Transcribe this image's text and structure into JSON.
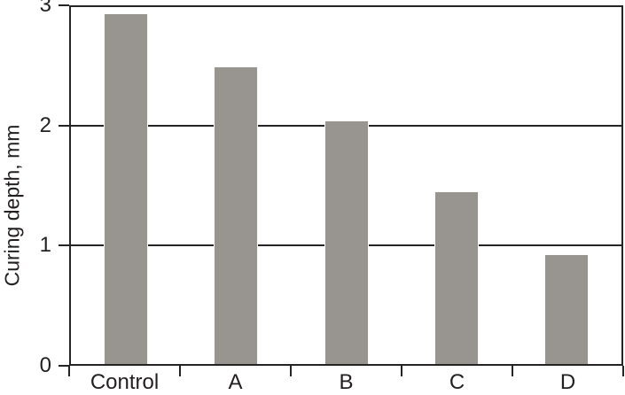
{
  "figure": {
    "background": "#ffffff"
  },
  "chart_data": {
    "type": "bar",
    "categories": [
      "Control",
      "A",
      "B",
      "C",
      "D"
    ],
    "values": [
      2.95,
      2.5,
      2.05,
      1.45,
      0.92
    ],
    "title": "",
    "xlabel": "",
    "ylabel": "Curing depth, mm",
    "ylim": [
      0,
      3
    ],
    "yticks": [
      0,
      1,
      2,
      3
    ],
    "gridlines_at": [
      1,
      2
    ],
    "grid": "horizontal",
    "legend": "none",
    "bar_color": "#98948f",
    "axis_color": "#262324",
    "text_color": "#231f20"
  }
}
